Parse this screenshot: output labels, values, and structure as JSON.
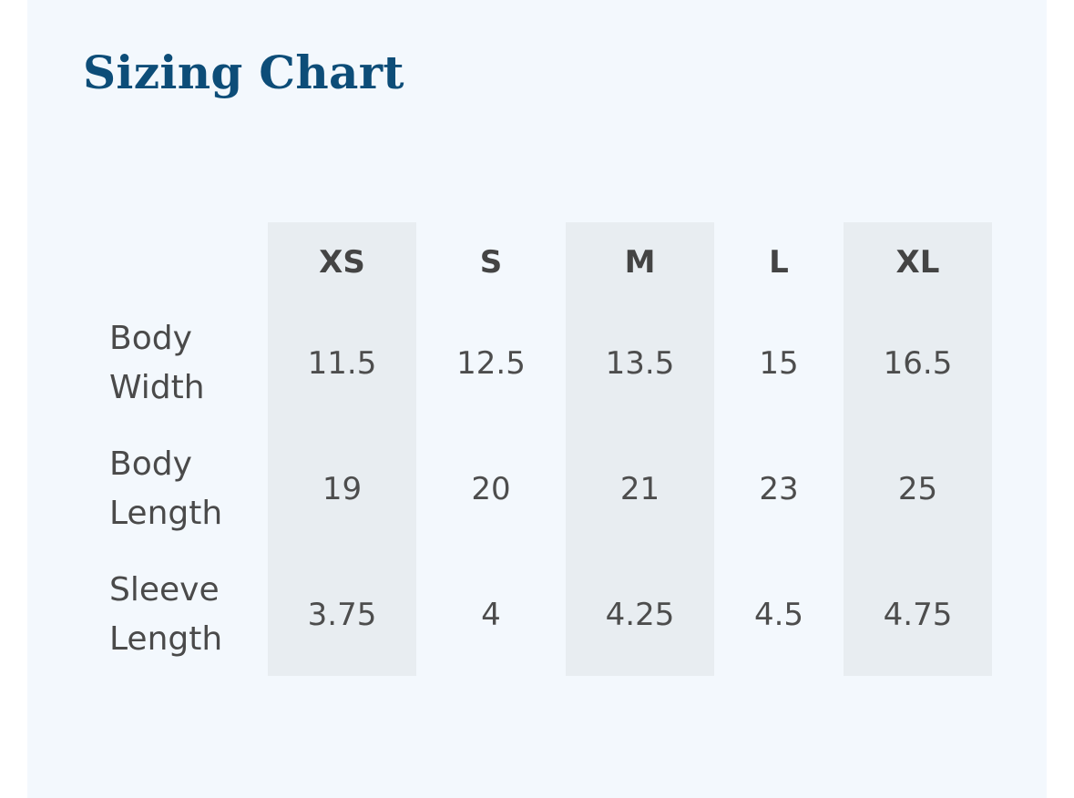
{
  "title": "Sizing Chart",
  "colors": {
    "title": "#0d4d78",
    "panel_background": "#f3f8fd",
    "stripe_background": "#e8edf1",
    "text": "#4a4a4a"
  },
  "table": {
    "sizes": [
      "XS",
      "S",
      "M",
      "L",
      "XL"
    ],
    "rows": [
      {
        "label_line1": "Body",
        "label_line2": "Width",
        "values": [
          "11.5",
          "12.5",
          "13.5",
          "15",
          "16.5"
        ]
      },
      {
        "label_line1": "Body",
        "label_line2": "Length",
        "values": [
          "19",
          "20",
          "21",
          "23",
          "25"
        ]
      },
      {
        "label_line1": "Sleeve",
        "label_line2": "Length",
        "values": [
          "3.75",
          "4",
          "4.25",
          "4.5",
          "4.75"
        ]
      }
    ]
  }
}
